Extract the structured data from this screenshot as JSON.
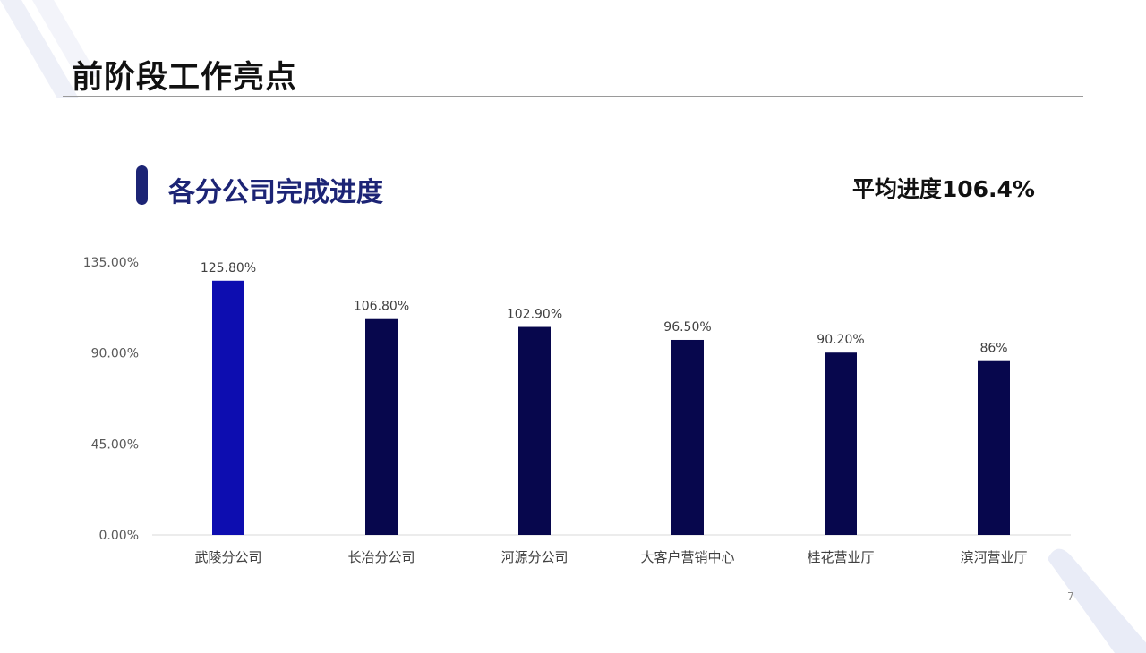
{
  "slide": {
    "title": "前阶段工作亮点",
    "section_title": "各分公司完成进度",
    "average_progress": "平均进度106.4%",
    "page_number": "7"
  },
  "colors": {
    "highlight_bar": "#0d0db0",
    "bar": "#07074d",
    "accent": "#1c2475",
    "decor": "#e9ecf7"
  },
  "chart_data": {
    "type": "bar",
    "categories": [
      "武陵分公司",
      "长冶分公司",
      "河源分公司",
      "大客户营销中心",
      "桂花营业厅",
      "滨河营业厅"
    ],
    "values": [
      125.8,
      106.8,
      102.9,
      96.5,
      90.2,
      86
    ],
    "data_labels": [
      "125.80%",
      "106.80%",
      "102.90%",
      "96.50%",
      "90.20%",
      "86%"
    ],
    "y_ticks": [
      0,
      45,
      90,
      135
    ],
    "y_tick_labels": [
      "0.00%",
      "45.00%",
      "90.00%",
      "135.00%"
    ],
    "ylim": [
      0,
      135
    ],
    "grid": false,
    "highlight_index": 0
  }
}
